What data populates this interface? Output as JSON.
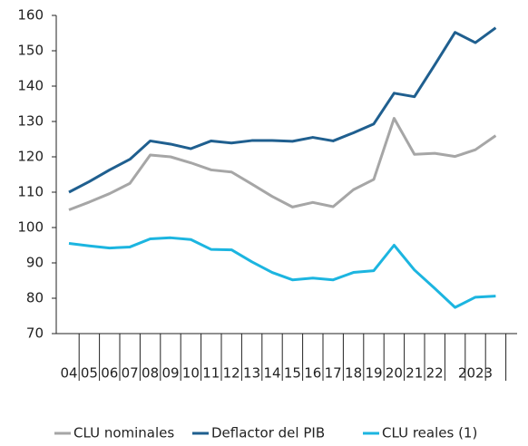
{
  "chart_data": {
    "type": "line",
    "categories": [
      "04",
      "05",
      "06",
      "07",
      "08",
      "09",
      "10",
      "11",
      "12",
      "13",
      "14",
      "15",
      "16",
      "17",
      "18",
      "19",
      "20",
      "21",
      "22",
      null,
      "2023",
      null
    ],
    "series": [
      {
        "name": "CLU nominales",
        "color": "#a6a6a6",
        "values": [
          105,
          107.2,
          109.6,
          112.5,
          120.5,
          120,
          118.3,
          116.3,
          115.7,
          112.3,
          108.8,
          105.8,
          107.1,
          105.9,
          110.7,
          113.6,
          130.9,
          120.7,
          121,
          120.1,
          122,
          126
        ]
      },
      {
        "name": "Deflactor del PIB",
        "color": "#1f5f8f",
        "values": [
          110,
          113,
          116.3,
          119.3,
          124.5,
          123.6,
          122.3,
          124.5,
          123.9,
          124.6,
          124.6,
          124.4,
          125.5,
          124.5,
          126.8,
          129.3,
          138,
          137,
          146,
          155.2,
          152.3,
          156.5
        ]
      },
      {
        "name": "CLU reales (1)",
        "color": "#1cb5e0",
        "values": [
          95.5,
          94.8,
          94.2,
          94.5,
          96.8,
          97.1,
          96.6,
          93.8,
          93.7,
          90.3,
          87.3,
          85.2,
          85.7,
          85.2,
          87.3,
          87.8,
          95,
          88,
          82.8,
          77.4,
          80.3,
          80.6
        ]
      }
    ],
    "ylim": [
      70,
      160
    ],
    "yticks": [
      70,
      80,
      90,
      100,
      110,
      120,
      130,
      140,
      150,
      160
    ],
    "legend": "bottom"
  }
}
